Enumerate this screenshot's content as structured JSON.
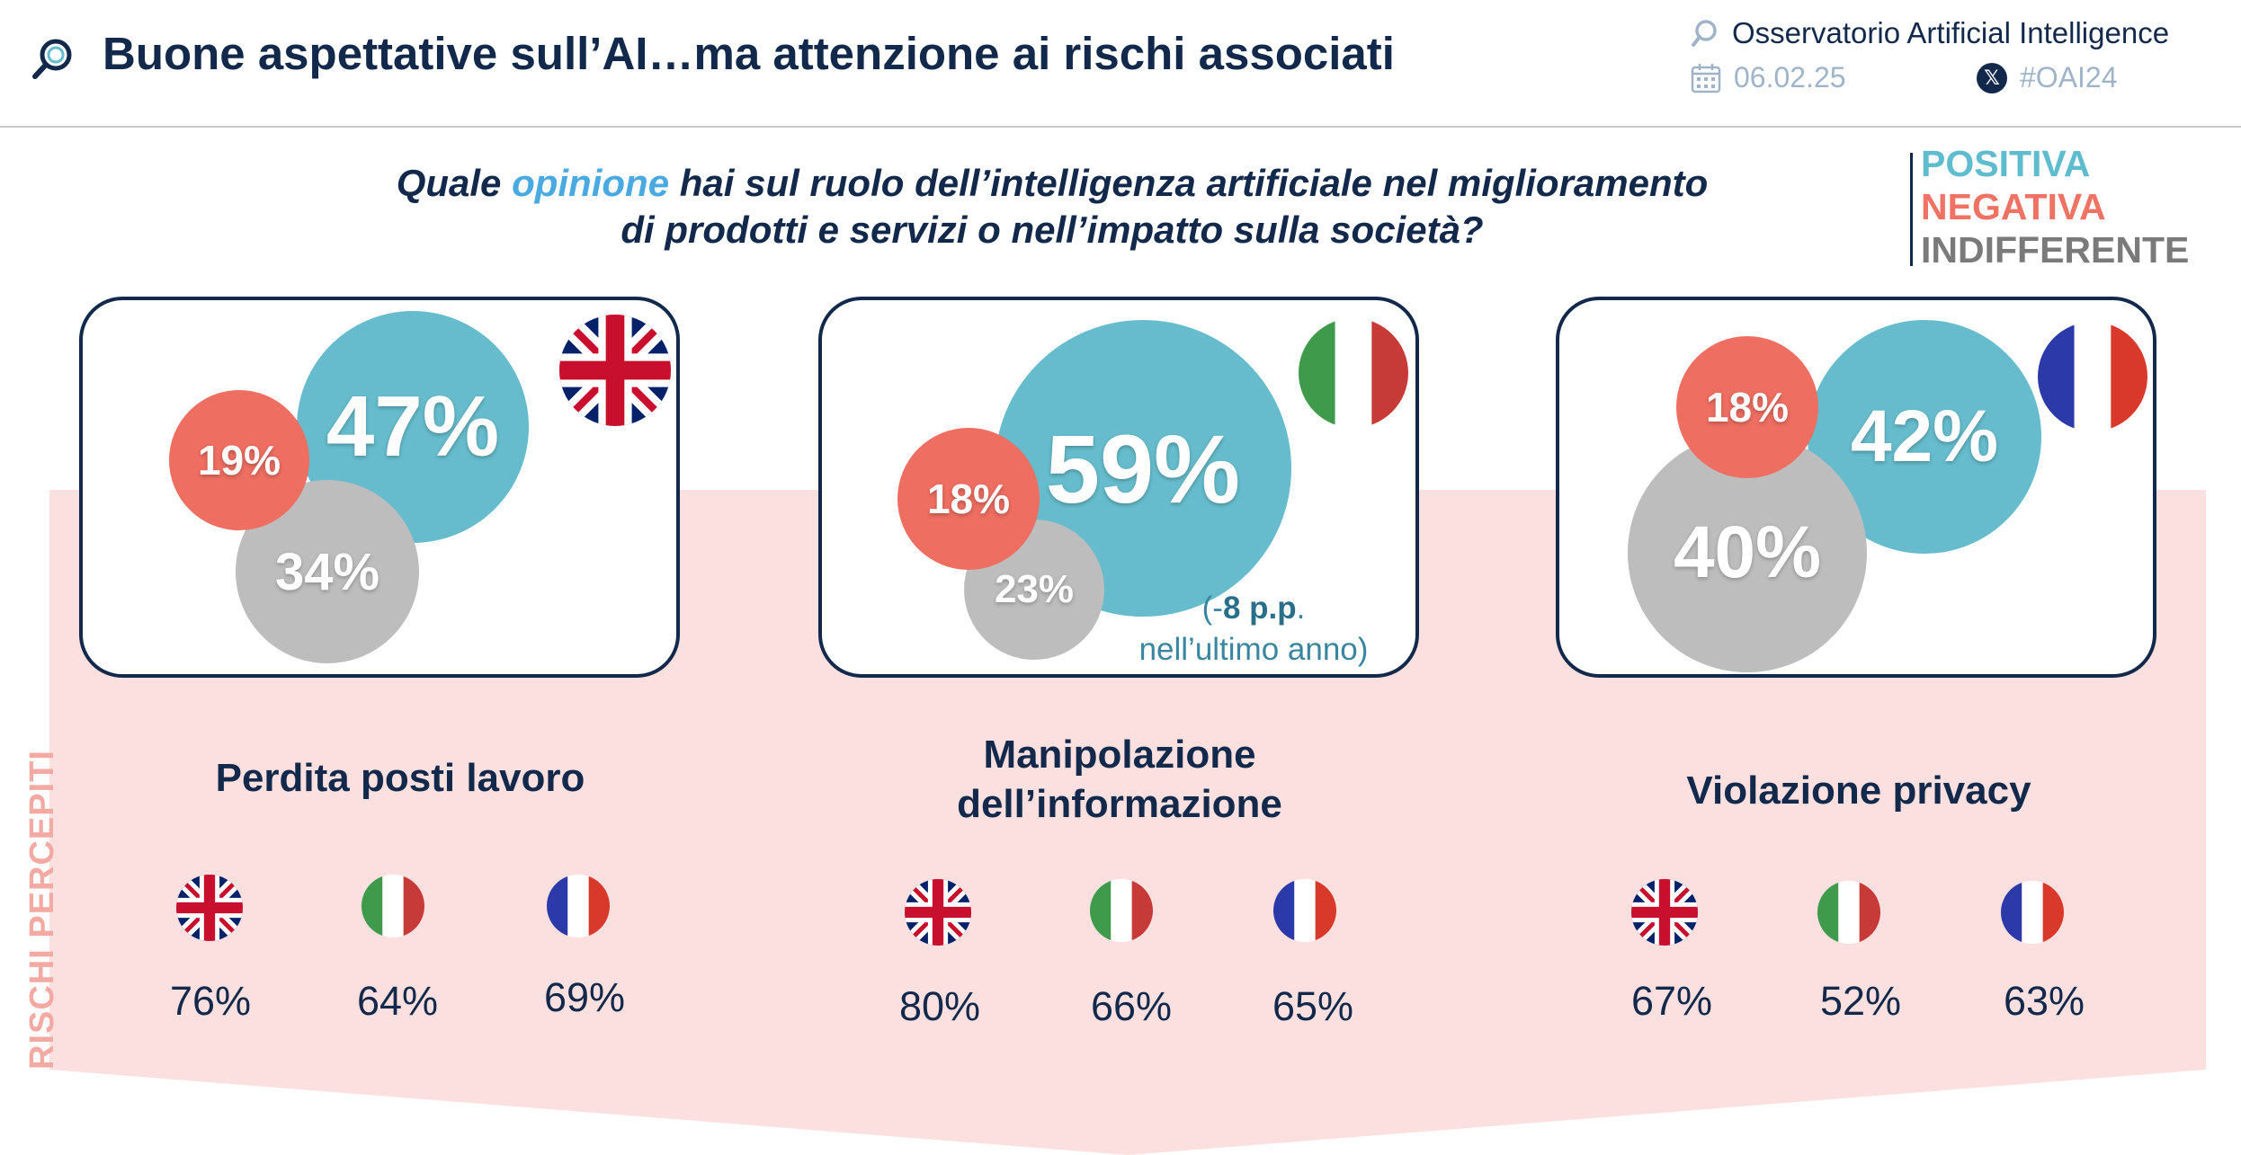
{
  "header": {
    "title": "Buone aspettative sull’AI…ma attenzione ai rischi associati",
    "observatory": "Osservatorio Artificial Intelligence",
    "date": "06.02.25",
    "hashtag": "#OAI24",
    "x_badge": "𝕏"
  },
  "question": {
    "before": "Quale ",
    "highlight": "opinione",
    "after_line1": " hai sul ruolo dell’intelligenza artificiale nel miglioramento",
    "line2": "di prodotti e servizi o nell’impatto sulla società?"
  },
  "legend": {
    "positive": "POSITIVA",
    "negative": "NEGATIVA",
    "indifferent": "INDIFFERENTE"
  },
  "colors": {
    "positive": "#66bccc",
    "negative": "#ee6e61",
    "indifferent": "#bdbdbd",
    "navy": "#13294b",
    "band": "#fbe0df"
  },
  "cards": {
    "uk": {
      "flag": "uk-flag",
      "positive": "47%",
      "negative": "19%",
      "indifferent": "34%"
    },
    "it": {
      "flag": "italy-flag",
      "positive": "59%",
      "negative": "18%",
      "indifferent": "23%",
      "note_open": "(-",
      "note_bold": "8 p.p",
      "note_close": ".",
      "note_line2": "nell’ultimo anno)"
    },
    "fr": {
      "flag": "france-flag",
      "positive": "42%",
      "negative": "18%",
      "indifferent": "40%"
    }
  },
  "risks_label": "RISCHI PERCEPITI",
  "risks": {
    "jobs": {
      "title": "Perdita posti lavoro",
      "uk": "76%",
      "it": "64%",
      "fr": "69%"
    },
    "info": {
      "title_line1": "Manipolazione",
      "title_line2": "dell’informazione",
      "uk": "80%",
      "it": "66%",
      "fr": "65%"
    },
    "privacy": {
      "title": "Violazione privacy",
      "uk": "67%",
      "it": "52%",
      "fr": "63%"
    }
  }
}
